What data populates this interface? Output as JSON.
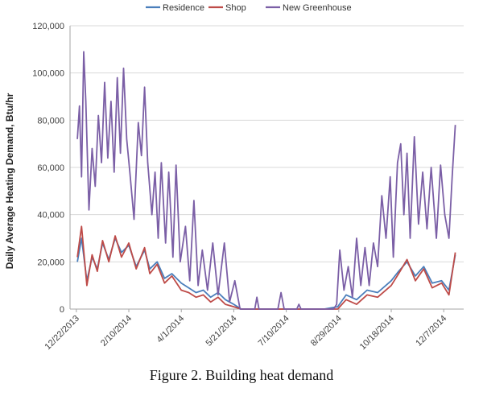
{
  "chart_data": {
    "type": "line",
    "title": "",
    "caption": "Figure 2. Building heat demand",
    "ylabel": "Daily Average Heating Demand, Btu/hr",
    "xlabel": "",
    "ylim": [
      0,
      120000
    ],
    "yticks": [
      0,
      20000,
      40000,
      60000,
      80000,
      100000,
      120000
    ],
    "ytick_labels": [
      "0",
      "20,000",
      "40,000",
      "60,000",
      "80,000",
      "100,000",
      "120,000"
    ],
    "xlim": [
      "2013-12-16",
      "2014-12-26"
    ],
    "xticks": [
      "2013-12-22",
      "2014-02-10",
      "2014-04-01",
      "2014-05-21",
      "2014-07-10",
      "2014-08-29",
      "2014-10-18",
      "2014-12-07"
    ],
    "xtick_labels": [
      "12/22/2013",
      "2/10/2014",
      "4/1/2014",
      "5/21/2014",
      "7/10/2014",
      "8/29/2014",
      "10/18/2014",
      "12/7/2014"
    ],
    "grid": true,
    "legend_position": "top",
    "series": [
      {
        "name": "Residence",
        "color": "#4a7ebb",
        "points": [
          [
            "2013-12-23",
            20000
          ],
          [
            "2013-12-27",
            30000
          ],
          [
            "2014-01-01",
            12000
          ],
          [
            "2014-01-06",
            22000
          ],
          [
            "2014-01-11",
            17000
          ],
          [
            "2014-01-16",
            28000
          ],
          [
            "2014-01-22",
            21000
          ],
          [
            "2014-01-28",
            30000
          ],
          [
            "2014-02-03",
            24000
          ],
          [
            "2014-02-10",
            27000
          ],
          [
            "2014-02-17",
            18000
          ],
          [
            "2014-02-25",
            25000
          ],
          [
            "2014-03-02",
            17000
          ],
          [
            "2014-03-09",
            20000
          ],
          [
            "2014-03-16",
            13000
          ],
          [
            "2014-03-23",
            15000
          ],
          [
            "2014-04-01",
            11000
          ],
          [
            "2014-04-08",
            9000
          ],
          [
            "2014-04-15",
            7000
          ],
          [
            "2014-04-22",
            8000
          ],
          [
            "2014-04-29",
            5000
          ],
          [
            "2014-05-06",
            7000
          ],
          [
            "2014-05-13",
            4000
          ],
          [
            "2014-05-21",
            2000
          ],
          [
            "2014-05-28",
            0
          ],
          [
            "2014-06-15",
            0
          ],
          [
            "2014-07-10",
            0
          ],
          [
            "2014-08-15",
            0
          ],
          [
            "2014-08-28",
            1000
          ],
          [
            "2014-09-05",
            6000
          ],
          [
            "2014-09-15",
            4000
          ],
          [
            "2014-09-25",
            8000
          ],
          [
            "2014-10-05",
            7000
          ],
          [
            "2014-10-18",
            12000
          ],
          [
            "2014-10-25",
            16000
          ],
          [
            "2014-11-02",
            20000
          ],
          [
            "2014-11-10",
            14000
          ],
          [
            "2014-11-18",
            18000
          ],
          [
            "2014-11-26",
            11000
          ],
          [
            "2014-12-05",
            12000
          ],
          [
            "2014-12-12",
            8000
          ],
          [
            "2014-12-18",
            23000
          ]
        ]
      },
      {
        "name": "Shop",
        "color": "#be4b48",
        "points": [
          [
            "2013-12-23",
            22000
          ],
          [
            "2013-12-27",
            35000
          ],
          [
            "2014-01-01",
            10000
          ],
          [
            "2014-01-06",
            23000
          ],
          [
            "2014-01-11",
            16000
          ],
          [
            "2014-01-16",
            29000
          ],
          [
            "2014-01-22",
            20000
          ],
          [
            "2014-01-28",
            31000
          ],
          [
            "2014-02-03",
            22000
          ],
          [
            "2014-02-10",
            28000
          ],
          [
            "2014-02-17",
            17000
          ],
          [
            "2014-02-25",
            26000
          ],
          [
            "2014-03-02",
            15000
          ],
          [
            "2014-03-09",
            19000
          ],
          [
            "2014-03-16",
            11000
          ],
          [
            "2014-03-23",
            14000
          ],
          [
            "2014-04-01",
            8000
          ],
          [
            "2014-04-08",
            7000
          ],
          [
            "2014-04-15",
            5000
          ],
          [
            "2014-04-22",
            6000
          ],
          [
            "2014-04-29",
            3000
          ],
          [
            "2014-05-06",
            5000
          ],
          [
            "2014-05-13",
            2000
          ],
          [
            "2014-05-21",
            1000
          ],
          [
            "2014-05-28",
            0
          ],
          [
            "2014-06-15",
            0
          ],
          [
            "2014-07-10",
            0
          ],
          [
            "2014-08-15",
            0
          ],
          [
            "2014-08-28",
            0
          ],
          [
            "2014-09-05",
            4000
          ],
          [
            "2014-09-15",
            2000
          ],
          [
            "2014-09-25",
            6000
          ],
          [
            "2014-10-05",
            5000
          ],
          [
            "2014-10-18",
            10000
          ],
          [
            "2014-10-25",
            15000
          ],
          [
            "2014-11-02",
            21000
          ],
          [
            "2014-11-10",
            12000
          ],
          [
            "2014-11-18",
            17000
          ],
          [
            "2014-11-26",
            9000
          ],
          [
            "2014-12-05",
            11000
          ],
          [
            "2014-12-12",
            6000
          ],
          [
            "2014-12-18",
            24000
          ]
        ]
      },
      {
        "name": "New Greenhouse",
        "color": "#7b5fa6",
        "points": [
          [
            "2013-12-23",
            72000
          ],
          [
            "2013-12-25",
            86000
          ],
          [
            "2013-12-27",
            56000
          ],
          [
            "2013-12-29",
            109000
          ],
          [
            "2013-12-31",
            88000
          ],
          [
            "2014-01-03",
            42000
          ],
          [
            "2014-01-06",
            68000
          ],
          [
            "2014-01-09",
            52000
          ],
          [
            "2014-01-12",
            82000
          ],
          [
            "2014-01-15",
            62000
          ],
          [
            "2014-01-18",
            96000
          ],
          [
            "2014-01-21",
            64000
          ],
          [
            "2014-01-24",
            88000
          ],
          [
            "2014-01-27",
            58000
          ],
          [
            "2014-01-30",
            98000
          ],
          [
            "2014-02-02",
            66000
          ],
          [
            "2014-02-05",
            102000
          ],
          [
            "2014-02-08",
            72000
          ],
          [
            "2014-02-11",
            58000
          ],
          [
            "2014-02-15",
            38000
          ],
          [
            "2014-02-19",
            79000
          ],
          [
            "2014-02-22",
            65000
          ],
          [
            "2014-02-25",
            94000
          ],
          [
            "2014-02-28",
            62000
          ],
          [
            "2014-03-04",
            40000
          ],
          [
            "2014-03-07",
            58000
          ],
          [
            "2014-03-10",
            30000
          ],
          [
            "2014-03-13",
            62000
          ],
          [
            "2014-03-17",
            28000
          ],
          [
            "2014-03-20",
            58000
          ],
          [
            "2014-03-24",
            22000
          ],
          [
            "2014-03-27",
            61000
          ],
          [
            "2014-03-31",
            20000
          ],
          [
            "2014-04-05",
            35000
          ],
          [
            "2014-04-09",
            12000
          ],
          [
            "2014-04-13",
            46000
          ],
          [
            "2014-04-17",
            10000
          ],
          [
            "2014-04-21",
            25000
          ],
          [
            "2014-04-26",
            8000
          ],
          [
            "2014-05-01",
            28000
          ],
          [
            "2014-05-06",
            6000
          ],
          [
            "2014-05-12",
            28000
          ],
          [
            "2014-05-17",
            3000
          ],
          [
            "2014-05-22",
            12000
          ],
          [
            "2014-05-27",
            0
          ],
          [
            "2014-06-10",
            0
          ],
          [
            "2014-06-12",
            5000
          ],
          [
            "2014-06-14",
            0
          ],
          [
            "2014-07-02",
            0
          ],
          [
            "2014-07-05",
            7000
          ],
          [
            "2014-07-08",
            0
          ],
          [
            "2014-07-20",
            0
          ],
          [
            "2014-07-22",
            2000
          ],
          [
            "2014-07-24",
            0
          ],
          [
            "2014-08-24",
            0
          ],
          [
            "2014-08-27",
            2000
          ],
          [
            "2014-08-30",
            25000
          ],
          [
            "2014-09-03",
            8000
          ],
          [
            "2014-09-07",
            18000
          ],
          [
            "2014-09-11",
            5000
          ],
          [
            "2014-09-15",
            30000
          ],
          [
            "2014-09-19",
            10000
          ],
          [
            "2014-09-23",
            26000
          ],
          [
            "2014-09-27",
            10000
          ],
          [
            "2014-10-01",
            28000
          ],
          [
            "2014-10-05",
            18000
          ],
          [
            "2014-10-09",
            48000
          ],
          [
            "2014-10-13",
            30000
          ],
          [
            "2014-10-17",
            56000
          ],
          [
            "2014-10-20",
            22000
          ],
          [
            "2014-10-24",
            62000
          ],
          [
            "2014-10-27",
            70000
          ],
          [
            "2014-10-30",
            40000
          ],
          [
            "2014-11-02",
            66000
          ],
          [
            "2014-11-05",
            30000
          ],
          [
            "2014-11-09",
            73000
          ],
          [
            "2014-11-13",
            36000
          ],
          [
            "2014-11-17",
            58000
          ],
          [
            "2014-11-21",
            34000
          ],
          [
            "2014-11-25",
            60000
          ],
          [
            "2014-11-30",
            30000
          ],
          [
            "2014-12-04",
            61000
          ],
          [
            "2014-12-08",
            40000
          ],
          [
            "2014-12-12",
            30000
          ],
          [
            "2014-12-15",
            56000
          ],
          [
            "2014-12-18",
            78000
          ]
        ]
      }
    ]
  }
}
